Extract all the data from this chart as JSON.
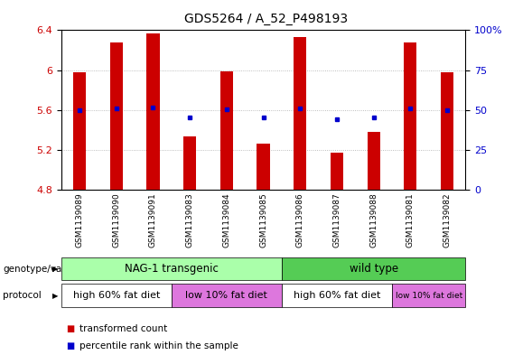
{
  "title": "GDS5264 / A_52_P498193",
  "samples": [
    "GSM1139089",
    "GSM1139090",
    "GSM1139091",
    "GSM1139083",
    "GSM1139084",
    "GSM1139085",
    "GSM1139086",
    "GSM1139087",
    "GSM1139088",
    "GSM1139081",
    "GSM1139082"
  ],
  "transformed_counts": [
    5.98,
    6.28,
    6.37,
    5.34,
    5.99,
    5.26,
    6.33,
    5.17,
    5.38,
    6.28,
    5.98
  ],
  "percentile_values": [
    5.6,
    5.62,
    5.63,
    5.53,
    5.61,
    5.53,
    5.62,
    5.51,
    5.53,
    5.62,
    5.6
  ],
  "ymin": 4.8,
  "ymax": 6.4,
  "yticks": [
    4.8,
    5.2,
    5.6,
    6.0,
    6.4
  ],
  "ytick_labels": [
    "4.8",
    "5.2",
    "5.6",
    "6",
    "6.4"
  ],
  "y2ticks": [
    0,
    25,
    50,
    75,
    100
  ],
  "y2tick_labels": [
    "0",
    "25",
    "50",
    "75",
    "100%"
  ],
  "bar_color": "#cc0000",
  "dot_color": "#0000cc",
  "bar_width": 0.35,
  "genotype_groups": [
    {
      "label": "NAG-1 transgenic",
      "start": 0,
      "end": 6,
      "color": "#aaffaa"
    },
    {
      "label": "wild type",
      "start": 6,
      "end": 11,
      "color": "#55cc55"
    }
  ],
  "protocol_groups": [
    {
      "label": "high 60% fat diet",
      "start": 0,
      "end": 3,
      "color": "#ffffff"
    },
    {
      "label": "low 10% fat diet",
      "start": 3,
      "end": 6,
      "color": "#dd77dd"
    },
    {
      "label": "high 60% fat diet",
      "start": 6,
      "end": 9,
      "color": "#ffffff"
    },
    {
      "label": "low 10% fat diet",
      "start": 9,
      "end": 11,
      "color": "#dd77dd"
    }
  ],
  "legend_items": [
    {
      "label": "transformed count",
      "color": "#cc0000"
    },
    {
      "label": "percentile rank within the sample",
      "color": "#0000cc"
    }
  ],
  "bg_color": "#ffffff",
  "plot_bg_color": "#ffffff",
  "grid_color": "#aaaaaa",
  "tick_color_left": "#cc0000",
  "tick_color_right": "#0000cc",
  "genotype_label": "genotype/variation",
  "protocol_label": "protocol"
}
